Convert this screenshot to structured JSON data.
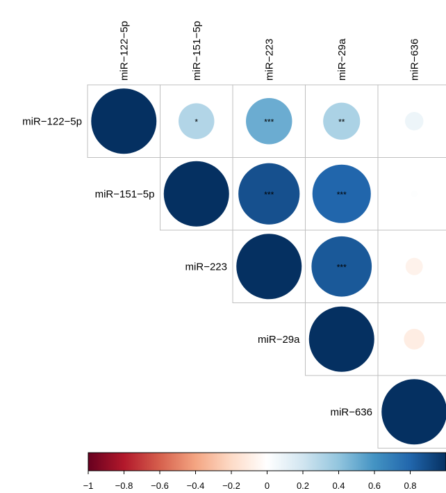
{
  "chart_data": {
    "type": "heatmap",
    "variables": [
      "miR−122−5p",
      "miR−151−5p",
      "miR−223",
      "miR−29a",
      "miR−636"
    ],
    "matrix": [
      [
        1.0,
        0.3,
        0.5,
        0.32,
        0.08
      ],
      [
        0.3,
        1.0,
        0.88,
        0.8,
        0.01
      ],
      [
        0.5,
        0.88,
        1.0,
        0.85,
        -0.07
      ],
      [
        0.32,
        0.8,
        0.85,
        1.0,
        -0.1
      ],
      [
        0.08,
        0.01,
        -0.07,
        -0.1,
        1.0
      ]
    ],
    "significance": [
      [
        "",
        "*",
        "***",
        "**",
        ""
      ],
      [
        "",
        "",
        "***",
        "***",
        ""
      ],
      [
        "",
        "",
        "",
        "***",
        ""
      ],
      [
        "",
        "",
        "",
        "",
        ""
      ],
      [
        "",
        "",
        "",
        "",
        ""
      ]
    ],
    "triangle": "upper",
    "colorbar": {
      "ticks": [
        "−1",
        "−0.8",
        "−0.6",
        "−0.4",
        "−0.2",
        "0",
        "0.2",
        "0.4",
        "0.6",
        "0.8"
      ],
      "range": [
        -1,
        1
      ],
      "colors": [
        "#67001f",
        "#b2182b",
        "#d6604d",
        "#f4a582",
        "#fddbc7",
        "#ffffff",
        "#d1e5f0",
        "#92c5de",
        "#4393c3",
        "#2166ac",
        "#053061"
      ]
    },
    "colors": {
      "grid": "#bfbfbf",
      "colorbar_border": "#000000"
    }
  }
}
